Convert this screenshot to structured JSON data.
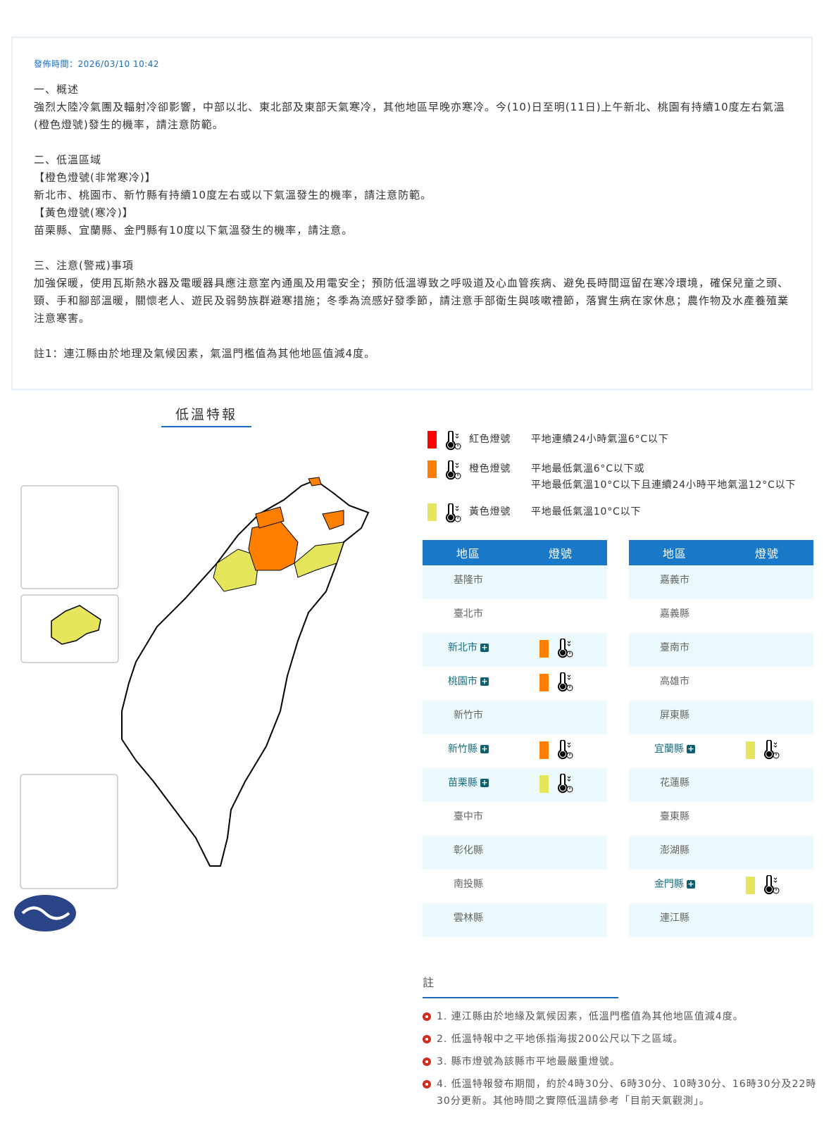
{
  "publish": "發佈時間：2026/03/10 10:42",
  "content": [
    "一、概述",
    "強烈大陸冷氣團及輻射冷卻影響，中部以北、東北部及東部天氣寒冷，其他地區早晚亦寒冷。今(10)日至明(11日)上午新北、桃園有持續10度左右氣溫(橙色燈號)發生的機率，請注意防範。",
    "",
    "二、低溫區域",
    "【橙色燈號(非常寒冷)】",
    "新北市、桃園市、新竹縣有持續10度左右或以下氣溫發生的機率，請注意防範。",
    "【黃色燈號(寒冷)】",
    "苗栗縣、宜蘭縣、金門縣有10度以下氣溫發生的機率，請注意。",
    "",
    "三、注意(警戒)事項",
    "加強保暖，使用瓦斯熱水器及電暖器具應注意室內通風及用電安全；預防低溫導致之呼吸道及心血管疾病、避免長時間逗留在寒冷環境，確保兒童之頭、頸、手和腳部溫暖，關懷老人、遊民及弱勢族群避寒措施；冬季為流感好發季節，請注意手部衛生與咳嗽禮節，落實生病在家休息；農作物及水產養殖業注意寒害。",
    "",
    "註1：連江縣由於地理及氣候因素，氣溫門檻值為其他地區值減4度。"
  ],
  "map_title": "低溫特報",
  "colors": {
    "red": "#ff0000",
    "orange": "#ff8000",
    "yellow": "#e6e65c",
    "header": "#1a78c8"
  },
  "legend": [
    {
      "color": "#ff0000",
      "icon": "thermometer-icon",
      "name": "紅色燈號",
      "desc": [
        "平地連續24小時氣溫6°C以下"
      ]
    },
    {
      "color": "#ff8000",
      "icon": "thermometer-icon",
      "name": "橙色燈號",
      "desc": [
        "平地最低氣溫6°C以下或",
        "平地最低氣溫10°C以下且連續24小時平地氣溫12°C以下"
      ]
    },
    {
      "color": "#e6e65c",
      "icon": "thermometer-icon",
      "name": "黃色燈號",
      "desc": [
        "平地最低氣溫10°C以下"
      ]
    }
  ],
  "table_headers": {
    "region": "地區",
    "signal": "燈號"
  },
  "left_table": [
    {
      "name": "基隆市",
      "level": null
    },
    {
      "name": "臺北市",
      "level": null
    },
    {
      "name": "新北市",
      "level": "orange"
    },
    {
      "name": "桃園市",
      "level": "orange"
    },
    {
      "name": "新竹市",
      "level": null
    },
    {
      "name": "新竹縣",
      "level": "orange"
    },
    {
      "name": "苗栗縣",
      "level": "yellow"
    },
    {
      "name": "臺中市",
      "level": null
    },
    {
      "name": "彰化縣",
      "level": null
    },
    {
      "name": "南投縣",
      "level": null
    },
    {
      "name": "雲林縣",
      "level": null
    }
  ],
  "right_table": [
    {
      "name": "嘉義市",
      "level": null
    },
    {
      "name": "嘉義縣",
      "level": null
    },
    {
      "name": "臺南市",
      "level": null
    },
    {
      "name": "高雄市",
      "level": null
    },
    {
      "name": "屏東縣",
      "level": null
    },
    {
      "name": "宜蘭縣",
      "level": "yellow"
    },
    {
      "name": "花蓮縣",
      "level": null
    },
    {
      "name": "臺東縣",
      "level": null
    },
    {
      "name": "澎湖縣",
      "level": null
    },
    {
      "name": "金門縣",
      "level": "yellow"
    },
    {
      "name": "連江縣",
      "level": null
    }
  ],
  "notes_title": "註",
  "notes": [
    "1. 連江縣由於地緣及氣候因素，低溫門檻值為其他地區值減4度。",
    "2. 低溫特報中之平地係指海拔200公尺以下之區域。",
    "3. 縣市燈號為該縣市平地最嚴重燈號。",
    "4. 低溫特報發布期間，約於4時30分、6時30分、10時30分、16時30分及22時30分更新。其他時間之實際低溫請參考「目前天氣觀測」。"
  ]
}
